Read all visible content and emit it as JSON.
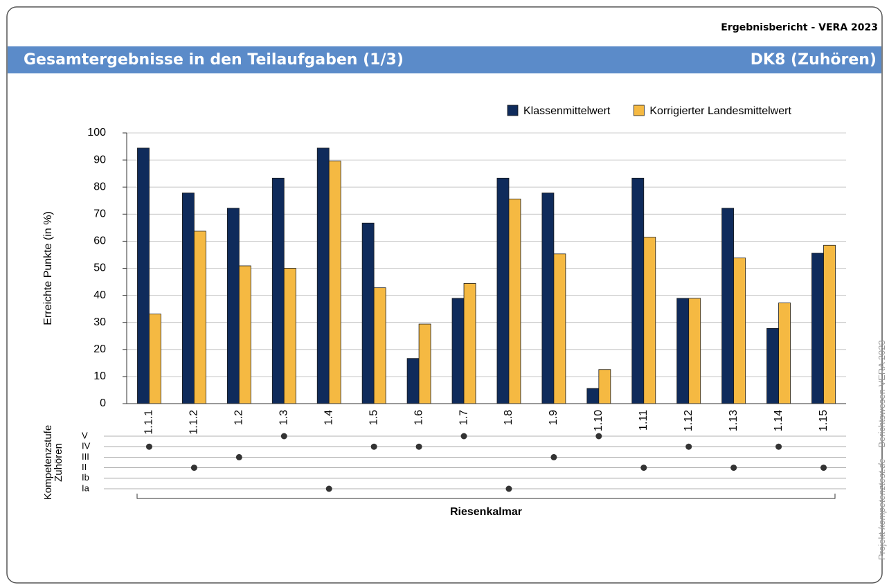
{
  "header": {
    "report": "Ergebnisbericht - VERA 2023",
    "title": "Gesamtergebnisse in den Teilaufgaben (1/3)",
    "subject": "DK8 (Zuhören)"
  },
  "chart_data": {
    "type": "bar",
    "ylabel": "Erreichte Punkte (in %)",
    "categories": [
      "1.1.1",
      "1.1.2",
      "1.2",
      "1.3",
      "1.4",
      "1.5",
      "1.6",
      "1.7",
      "1.8",
      "1.9",
      "1.10",
      "1.11",
      "1.12",
      "1.13",
      "1.14",
      "1.15"
    ],
    "series": [
      {
        "name": "Klassenmittelwert",
        "color": "#0f2b5b",
        "values": [
          94.4,
          77.8,
          72.2,
          83.3,
          94.4,
          66.7,
          16.7,
          38.9,
          83.3,
          77.8,
          5.6,
          83.3,
          38.9,
          72.2,
          27.8,
          55.6
        ]
      },
      {
        "name": "Korrigierter Landesmittelwert",
        "color": "#f5b942",
        "values": [
          33.1,
          63.7,
          50.9,
          50.0,
          89.6,
          42.8,
          29.4,
          44.4,
          75.6,
          55.3,
          12.6,
          61.5,
          38.9,
          53.8,
          37.2,
          58.5
        ]
      }
    ],
    "ylim": [
      0,
      100
    ],
    "yticks": [
      0,
      10,
      20,
      30,
      40,
      50,
      60,
      70,
      80,
      90,
      100
    ],
    "grid": true,
    "legend": "top-right",
    "competency": {
      "label": [
        "Kompetenzstufe",
        "Zuhören"
      ],
      "levels": [
        "V",
        "IV",
        "III",
        "II",
        "Ib",
        "Ia"
      ],
      "values": [
        "IV",
        "II",
        "III",
        "V",
        "Ia",
        "IV",
        "IV",
        "V",
        "Ia",
        "III",
        "V",
        "II",
        "IV",
        "II",
        "IV",
        "II"
      ]
    },
    "group": "Riesenkalmar"
  },
  "footer": {
    "project": "Projekt",
    "site": "kompetenztest.de",
    "series": "Berichtswesen VERA 2023"
  }
}
